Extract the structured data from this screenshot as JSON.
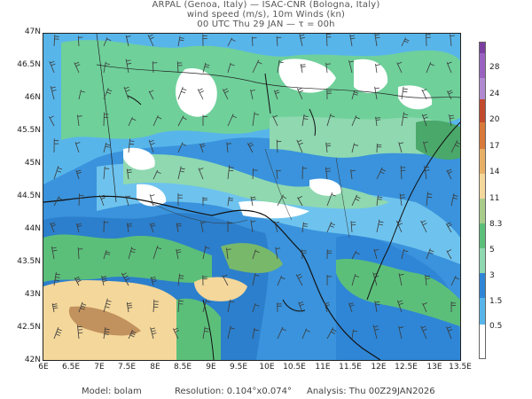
{
  "header": {
    "line1": "ARPAL (Genoa, Italy)  —  ISAC-CNR (Bologna, Italy)",
    "line2": "wind speed (m/s), 10m Winds (kn)",
    "line3": "00 UTC Thu 29 JAN  —  τ = 00h"
  },
  "axes": {
    "lat_labels": [
      "47N",
      "46.5N",
      "46N",
      "45.5N",
      "45N",
      "44.5N",
      "44N",
      "43.5N",
      "43N",
      "42.5N",
      "42N"
    ],
    "lon_labels": [
      "6E",
      "6.5E",
      "7E",
      "7.5E",
      "8E",
      "8.5E",
      "9E",
      "9.5E",
      "10E",
      "10.5E",
      "11E",
      "11.5E",
      "12E",
      "12.5E",
      "13E",
      "13.5E"
    ],
    "lat_range": [
      42,
      47
    ],
    "lon_range": [
      6,
      13.5
    ]
  },
  "colorbar": {
    "labels": [
      "28",
      "24",
      "20",
      "17",
      "14",
      "11",
      "8.3",
      "5",
      "3",
      "1.5",
      "0.5"
    ],
    "colors": [
      "#7b3fa0",
      "#9a62c0",
      "#c24a2e",
      "#d97a3a",
      "#e8b067",
      "#f4d79a",
      "#a8cc8a",
      "#5bbf7a",
      "#8fd8b0",
      "#2f86d6",
      "#2a9be0",
      "#58b5ea",
      "#ffffff"
    ],
    "units": "m/s"
  },
  "footer": {
    "model": "Model: bolam",
    "resolution": "Resolution: 0.104°x0.074°",
    "analysis": "Analysis: Thu 00Z29JAN2026"
  }
}
